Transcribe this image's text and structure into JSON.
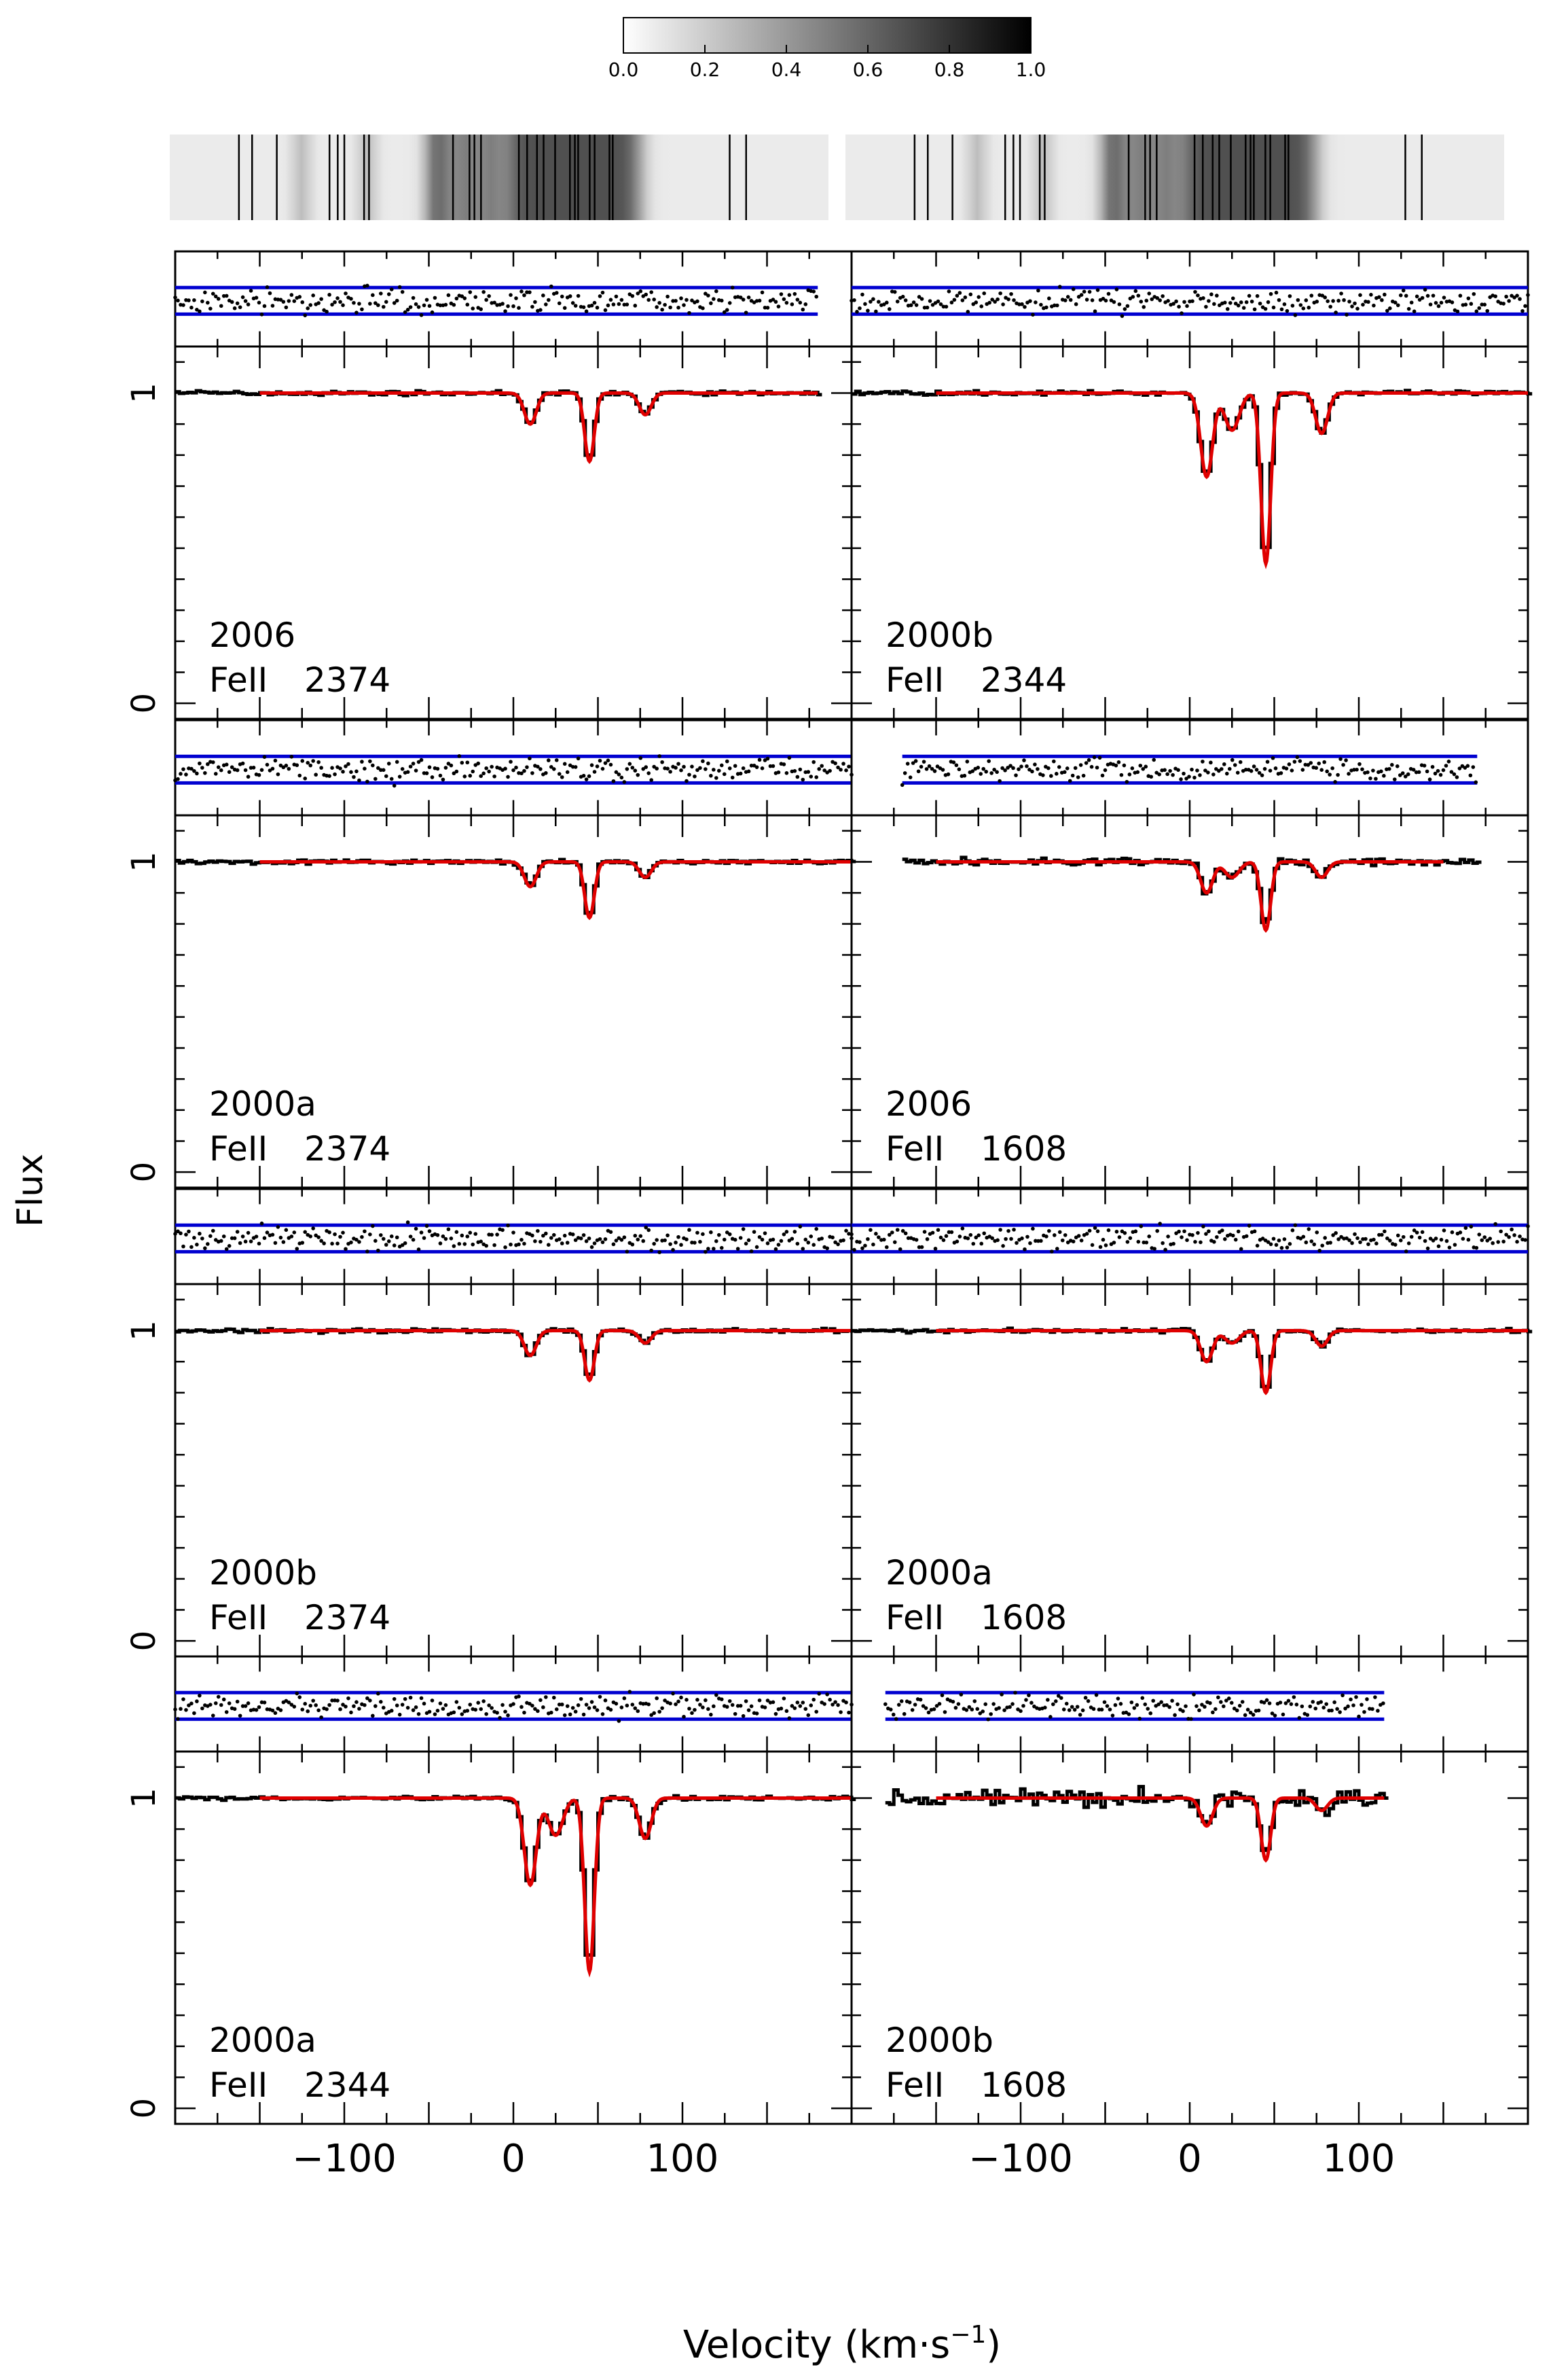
{
  "colorbar": {
    "ticks": [
      "0.0",
      "0.2",
      "0.4",
      "0.6",
      "0.8",
      "1.0"
    ],
    "range": [
      0,
      1
    ]
  },
  "colors": {
    "fit": "#e00000",
    "data": "#000000",
    "residual_band": "#0000d0"
  },
  "axis": {
    "ylabel": "Flux",
    "xlabel_main": "Velocity (km",
    "xlabel_sep": "·",
    "xlabel_unit": "s",
    "xlabel_exp": "−1",
    "xlabel_close": ")",
    "xticklabels": [
      "−100",
      "0",
      "100"
    ],
    "yticklabels": [
      "0",
      "1"
    ]
  },
  "chart_data": {
    "type": "line",
    "xlabel": "Velocity (km·s−1)",
    "ylabel": "Flux",
    "xlim": [
      -200,
      200
    ],
    "ylim": [
      -0.05,
      1.15
    ],
    "xticks_labeled": [
      -100,
      0,
      100
    ],
    "yticks_labeled": [
      0,
      1
    ],
    "velocity_component_markers": [
      -158,
      -150,
      -135,
      -103,
      -98,
      -94,
      -82,
      -79,
      -28,
      -18,
      -15,
      -11,
      12,
      17,
      23,
      27,
      34,
      43,
      46,
      48,
      55,
      58,
      67,
      69,
      140,
      150
    ],
    "optical_depth_strip": {
      "colorbar_range": [
        0,
        1
      ],
      "dark_velocities": [
        -35,
        -20,
        -5,
        10,
        20,
        30,
        40,
        50,
        60,
        70,
        80
      ]
    },
    "panels": [
      {
        "id": "p1",
        "epoch": "2006",
        "transition": "FeII",
        "wavelength": "2374",
        "row": 0,
        "col": 0,
        "vrange": [
          -200,
          180
        ],
        "features": [
          {
            "v": 10,
            "depth": 0.1,
            "w": 5
          },
          {
            "v": 45,
            "depth": 0.22,
            "w": 4
          },
          {
            "v": 78,
            "depth": 0.07,
            "w": 5
          }
        ]
      },
      {
        "id": "p2",
        "epoch": "2000b",
        "transition": "FeII",
        "wavelength": "2344",
        "row": 0,
        "col": 1,
        "vrange": [
          -200,
          200
        ],
        "features": [
          {
            "v": 10,
            "depth": 0.27,
            "w": 5
          },
          {
            "v": 25,
            "depth": 0.12,
            "w": 6
          },
          {
            "v": 45,
            "depth": 0.55,
            "w": 4
          },
          {
            "v": 78,
            "depth": 0.13,
            "w": 5
          }
        ]
      },
      {
        "id": "p3",
        "epoch": "2000a",
        "transition": "FeII",
        "wavelength": "2374",
        "row": 1,
        "col": 0,
        "vrange": [
          -200,
          200
        ],
        "features": [
          {
            "v": 10,
            "depth": 0.08,
            "w": 5
          },
          {
            "v": 45,
            "depth": 0.18,
            "w": 4
          },
          {
            "v": 78,
            "depth": 0.05,
            "w": 5
          }
        ]
      },
      {
        "id": "p4",
        "epoch": "2006",
        "transition": "FeII",
        "wavelength": "1608",
        "row": 1,
        "col": 1,
        "vrange": [
          -170,
          170
        ],
        "features": [
          {
            "v": 10,
            "depth": 0.1,
            "w": 5
          },
          {
            "v": 25,
            "depth": 0.05,
            "w": 6
          },
          {
            "v": 45,
            "depth": 0.22,
            "w": 4
          },
          {
            "v": 78,
            "depth": 0.05,
            "w": 5
          }
        ]
      },
      {
        "id": "p5",
        "epoch": "2000b",
        "transition": "FeII",
        "wavelength": "2374",
        "row": 2,
        "col": 0,
        "vrange": [
          -200,
          200
        ],
        "features": [
          {
            "v": 10,
            "depth": 0.08,
            "w": 5
          },
          {
            "v": 45,
            "depth": 0.16,
            "w": 4
          },
          {
            "v": 78,
            "depth": 0.04,
            "w": 5
          }
        ]
      },
      {
        "id": "p6",
        "epoch": "2000a",
        "transition": "FeII",
        "wavelength": "1608",
        "row": 2,
        "col": 1,
        "vrange": [
          -200,
          200
        ],
        "features": [
          {
            "v": 10,
            "depth": 0.1,
            "w": 5
          },
          {
            "v": 25,
            "depth": 0.04,
            "w": 6
          },
          {
            "v": 45,
            "depth": 0.2,
            "w": 4
          },
          {
            "v": 78,
            "depth": 0.05,
            "w": 5
          }
        ]
      },
      {
        "id": "p7",
        "epoch": "2000a",
        "transition": "FeII",
        "wavelength": "2344",
        "row": 3,
        "col": 0,
        "vrange": [
          -200,
          200
        ],
        "features": [
          {
            "v": 10,
            "depth": 0.28,
            "w": 5
          },
          {
            "v": 25,
            "depth": 0.12,
            "w": 6
          },
          {
            "v": 45,
            "depth": 0.56,
            "w": 4
          },
          {
            "v": 78,
            "depth": 0.13,
            "w": 5
          }
        ]
      },
      {
        "id": "p8",
        "epoch": "2000b",
        "transition": "FeII",
        "wavelength": "1608",
        "row": 3,
        "col": 1,
        "vrange": [
          -180,
          115
        ],
        "features": [
          {
            "v": 10,
            "depth": 0.09,
            "w": 5
          },
          {
            "v": 45,
            "depth": 0.2,
            "w": 4
          },
          {
            "v": 78,
            "depth": 0.04,
            "w": 5
          }
        ]
      }
    ]
  }
}
